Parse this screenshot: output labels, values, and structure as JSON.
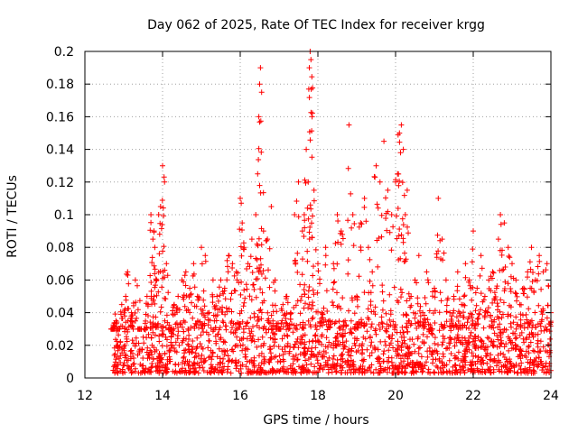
{
  "chart_data": {
    "type": "scatter",
    "title": "Day 062 of 2025, Rate Of TEC Index for receiver krgg",
    "xlabel": "GPS time / hours",
    "ylabel": "ROTI / TECUs",
    "xlim": [
      12,
      24
    ],
    "ylim": [
      0,
      0.2
    ],
    "x_ticks": [
      12,
      14,
      16,
      18,
      20,
      22,
      24
    ],
    "x_tick_labels": [
      "12",
      "14",
      "16",
      "18",
      "20",
      "22",
      "24"
    ],
    "y_ticks": [
      0,
      0.02,
      0.04,
      0.06,
      0.08,
      0.1,
      0.12,
      0.14,
      0.16,
      0.18,
      0.2
    ],
    "y_tick_labels": [
      "0",
      "0.02",
      "0.04",
      "0.06",
      "0.08",
      "0.1",
      "0.12",
      "0.14",
      "0.16",
      "0.18",
      "0.2"
    ],
    "grid": true,
    "marker": "+",
    "series": [
      {
        "name": "ROTI",
        "color": "#ff0000",
        "x": [
          12.72,
          12.8,
          12.85,
          12.95,
          13.05,
          13.1,
          13.2,
          13.3,
          13.4,
          13.5,
          13.6,
          13.7,
          13.75,
          13.78,
          13.8,
          13.85,
          13.9,
          13.95,
          14.0,
          14.05,
          14.1,
          14.2,
          14.3,
          14.4,
          14.5,
          14.6,
          14.7,
          14.8,
          14.9,
          15.0,
          15.1,
          15.2,
          15.3,
          15.4,
          15.5,
          15.6,
          15.7,
          15.8,
          15.9,
          16.0,
          16.05,
          16.1,
          16.2,
          16.3,
          16.4,
          16.45,
          16.48,
          16.5,
          16.52,
          16.55,
          16.6,
          16.7,
          16.8,
          16.9,
          17.0,
          17.1,
          17.2,
          17.3,
          17.4,
          17.5,
          17.6,
          17.65,
          17.7,
          17.75,
          17.78,
          17.8,
          17.82,
          17.85,
          17.9,
          18.0,
          18.1,
          18.2,
          18.3,
          18.4,
          18.5,
          18.6,
          18.7,
          18.8,
          18.9,
          19.0,
          19.1,
          19.2,
          19.3,
          19.4,
          19.5,
          19.6,
          19.7,
          19.8,
          19.9,
          20.0,
          20.05,
          20.1,
          20.15,
          20.2,
          20.25,
          20.3,
          20.4,
          20.5,
          20.6,
          20.7,
          20.8,
          20.9,
          21.0,
          21.1,
          21.2,
          21.3,
          21.4,
          21.5,
          21.6,
          21.7,
          21.8,
          21.9,
          22.0,
          22.1,
          22.2,
          22.3,
          22.4,
          22.5,
          22.6,
          22.65,
          22.7,
          22.8,
          22.9,
          23.0,
          23.1,
          23.2,
          23.3,
          23.4,
          23.5,
          23.6,
          23.7,
          23.8,
          23.9,
          24.0
        ],
        "values": [
          0.03,
          0.035,
          0.02,
          0.045,
          0.05,
          0.065,
          0.04,
          0.06,
          0.03,
          0.025,
          0.05,
          0.1,
          0.085,
          0.09,
          0.08,
          0.06,
          0.1,
          0.105,
          0.13,
          0.12,
          0.07,
          0.03,
          0.045,
          0.05,
          0.06,
          0.065,
          0.055,
          0.07,
          0.05,
          0.08,
          0.075,
          0.04,
          0.06,
          0.05,
          0.06,
          0.055,
          0.075,
          0.07,
          0.065,
          0.11,
          0.095,
          0.08,
          0.07,
          0.085,
          0.1,
          0.125,
          0.16,
          0.18,
          0.19,
          0.175,
          0.09,
          0.085,
          0.105,
          0.06,
          0.03,
          0.045,
          0.05,
          0.04,
          0.1,
          0.12,
          0.09,
          0.1,
          0.14,
          0.12,
          0.19,
          0.2,
          0.195,
          0.16,
          0.115,
          0.07,
          0.04,
          0.08,
          0.035,
          0.07,
          0.1,
          0.09,
          0.035,
          0.155,
          0.1,
          0.05,
          0.095,
          0.11,
          0.08,
          0.065,
          0.13,
          0.12,
          0.145,
          0.115,
          0.1,
          0.12,
          0.125,
          0.15,
          0.155,
          0.14,
          0.1,
          0.115,
          0.05,
          0.06,
          0.075,
          0.04,
          0.065,
          0.03,
          0.055,
          0.11,
          0.085,
          0.06,
          0.04,
          0.05,
          0.065,
          0.045,
          0.07,
          0.06,
          0.09,
          0.055,
          0.075,
          0.05,
          0.06,
          0.065,
          0.055,
          0.085,
          0.1,
          0.095,
          0.08,
          0.07,
          0.06,
          0.045,
          0.055,
          0.065,
          0.08,
          0.06,
          0.075,
          0.065,
          0.07,
          0.04
        ]
      }
    ],
    "background_band": {
      "x_from": 12.72,
      "x_to": 24.0,
      "values_min": 0.003,
      "values_max": 0.035
    }
  }
}
